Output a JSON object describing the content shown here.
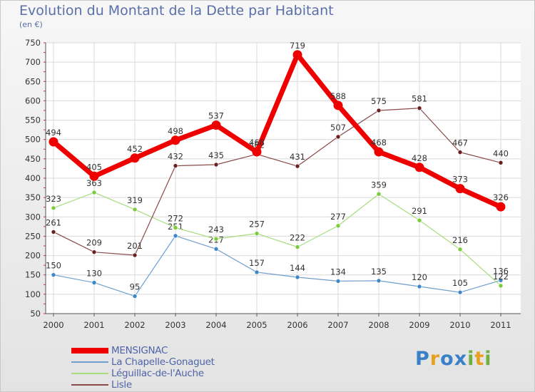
{
  "chart_data": {
    "type": "line",
    "title": "Evolution du Montant de la Dette par Habitant",
    "unit_label": "(en €)",
    "x": [
      "2000",
      "2001",
      "2002",
      "2003",
      "2004",
      "2005",
      "2006",
      "2007",
      "2008",
      "2009",
      "2010",
      "2011"
    ],
    "yticks": [
      50,
      100,
      150,
      200,
      250,
      300,
      350,
      400,
      450,
      500,
      550,
      600,
      650,
      700,
      750
    ],
    "ylim": [
      50,
      750
    ],
    "grid": true,
    "legend_position": "bottom-left",
    "series": [
      {
        "name": "MENSIGNAC",
        "values": [
          494,
          405,
          452,
          498,
          537,
          468,
          719,
          588,
          468,
          428,
          373,
          326
        ],
        "color": "#ee0000",
        "marker": "#ee0000",
        "width": 7
      },
      {
        "name": "La Chapelle-Gonaguet",
        "values": [
          150,
          130,
          95,
          251,
          217,
          157,
          144,
          134,
          135,
          120,
          105,
          136
        ],
        "color": "#6f9ecc",
        "marker": "#3b87c8",
        "width": 1.2
      },
      {
        "name": "Léguillac-de-l'Auche",
        "values": [
          323,
          363,
          319,
          272,
          243,
          257,
          222,
          277,
          359,
          291,
          216,
          122
        ],
        "color": "#a9dc7e",
        "marker": "#7ccb3a",
        "width": 1.2
      },
      {
        "name": "Lisle",
        "values": [
          261,
          209,
          201,
          432,
          435,
          462,
          431,
          507,
          575,
          581,
          467,
          440
        ],
        "color": "#8a4a4a",
        "marker": "#6b1f1f",
        "width": 1.2
      }
    ]
  },
  "brand": {
    "letters": [
      "P",
      "r",
      "o",
      "x",
      "i",
      "t",
      "i"
    ],
    "colors": [
      "#3a80c8",
      "#e8a020",
      "#3a80c8",
      "#3a80c8",
      "#70b040",
      "#e8a020",
      "#70b040"
    ]
  }
}
